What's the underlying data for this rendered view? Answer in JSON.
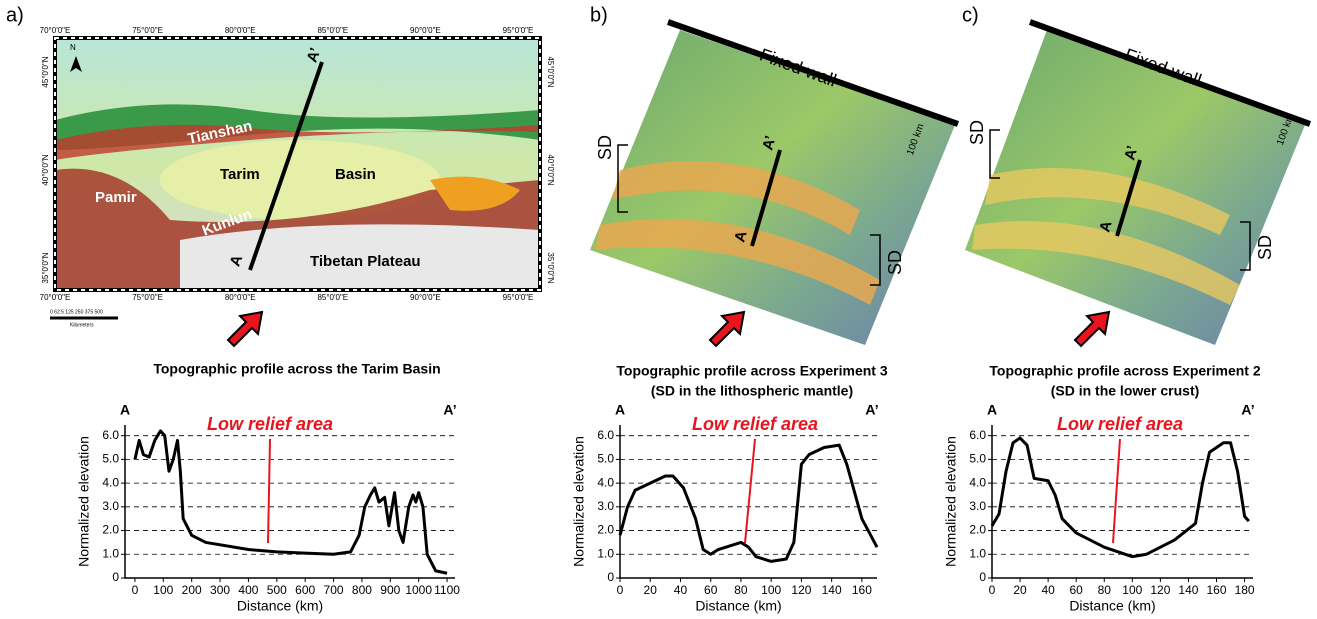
{
  "panels": [
    {
      "label": "a)",
      "lon_labels": [
        "70°0'0\"E",
        "75°0'0\"E",
        "80°0'0\"E",
        "85°0'0\"E",
        "90°0'0\"E",
        "95°0'0\"E"
      ],
      "lat_labels": [
        "45°0'0\"N",
        "40°0'0\"N",
        "35°0'0\"N"
      ],
      "north": "N",
      "scale_bar": {
        "ticks": "0 62.5 125    250    375    500",
        "unit": "Kilometers"
      },
      "places": [
        "Tianshan",
        "Tarim",
        "Basin",
        "Pamir",
        "Kunlun",
        "Tibetan Plateau"
      ],
      "profile_start": "A",
      "profile_end": "A’"
    },
    {
      "label": "b)",
      "wall": "Fixed wall",
      "sd_left": "SD",
      "sd_right": "SD",
      "scale": "100 km",
      "profile_start": "A",
      "profile_end": "A’"
    },
    {
      "label": "c)",
      "wall": "Fixed wall",
      "sd_left": "SD",
      "sd_right": "SD",
      "scale": "100 km",
      "profile_start": "A",
      "profile_end": "A’"
    }
  ],
  "chart_data": [
    {
      "type": "line",
      "title": "Topographic profile across the Tarim Basin",
      "x_label": "Distance (km)",
      "y_label": "Normalized elevation",
      "annotation": "Low relief area",
      "annotation_color": "#e8141e",
      "start_label": "A",
      "end_label": "A’",
      "x": [
        0,
        15,
        30,
        50,
        70,
        90,
        105,
        120,
        135,
        150,
        160,
        170,
        200,
        250,
        400,
        500,
        600,
        700,
        760,
        790,
        810,
        830,
        845,
        860,
        880,
        895,
        915,
        930,
        945,
        965,
        980,
        990,
        1000,
        1015,
        1030,
        1060,
        1100
      ],
      "series": [
        {
          "color": "#000000",
          "values": [
            5.0,
            5.8,
            5.2,
            5.1,
            5.8,
            6.2,
            6.0,
            4.5,
            5.0,
            5.8,
            4.5,
            2.5,
            1.8,
            1.5,
            1.2,
            1.1,
            1.05,
            1.0,
            1.1,
            1.8,
            3.0,
            3.5,
            3.8,
            3.2,
            3.4,
            2.2,
            3.6,
            2.0,
            1.5,
            3.0,
            3.5,
            3.2,
            3.6,
            3.0,
            1.0,
            0.3,
            0.2
          ]
        }
      ],
      "xlim": [
        -35,
        1128
      ],
      "xticks": [
        0,
        100,
        200,
        300,
        400,
        500,
        600,
        700,
        800,
        900,
        1000,
        1100
      ],
      "ylim": [
        0,
        6.45
      ],
      "yticks": [
        0,
        {
          "value": 1,
          "label": "1.0"
        },
        {
          "value": 2,
          "label": "2.0"
        },
        {
          "value": 3,
          "label": "3.0"
        },
        {
          "value": 4,
          "label": "4.0"
        },
        {
          "value": 5,
          "label": "5.0"
        },
        {
          "value": 6,
          "label": "6.0"
        }
      ],
      "grid": true
    },
    {
      "type": "line",
      "title": "Topographic profile across Experiment 3",
      "subtitle": "(SD in the lithospheric mantle)",
      "x_label": "Distance (km)",
      "y_label": "Normalized elevation",
      "annotation": "Low relief area",
      "annotation_color": "#e8141e",
      "start_label": "A",
      "end_label": "A’",
      "x": [
        0,
        5,
        10,
        20,
        30,
        35,
        42,
        50,
        55,
        60,
        65,
        70,
        80,
        85,
        90,
        100,
        110,
        115,
        120,
        125,
        135,
        145,
        150,
        160,
        170
      ],
      "series": [
        {
          "color": "#000000",
          "values": [
            1.8,
            3.0,
            3.7,
            4.0,
            4.3,
            4.3,
            3.8,
            2.5,
            1.2,
            1.0,
            1.2,
            1.3,
            1.5,
            1.3,
            0.9,
            0.7,
            0.8,
            1.5,
            4.8,
            5.2,
            5.5,
            5.6,
            4.8,
            2.5,
            1.3
          ]
        }
      ],
      "xlim": [
        0,
        170
      ],
      "xticks": [
        0,
        20,
        40,
        60,
        80,
        100,
        120,
        140,
        160
      ],
      "ylim": [
        0,
        6.45
      ],
      "yticks": [
        0,
        {
          "value": 1,
          "label": "1.0"
        },
        {
          "value": 2,
          "label": "2.0"
        },
        {
          "value": 3,
          "label": "3.0"
        },
        {
          "value": 4,
          "label": "4.0"
        },
        {
          "value": 5,
          "label": "5.0"
        },
        {
          "value": 6,
          "label": "6.0"
        }
      ],
      "grid": true
    },
    {
      "type": "line",
      "title": "Topographic profile across Experiment 2",
      "subtitle": "(SD in the lower crust)",
      "x_label": "Distance (km)",
      "y_label": "Normalized elevation",
      "annotation": "Low relief area",
      "annotation_color": "#e8141e",
      "start_label": "A",
      "end_label": "A’",
      "x": [
        0,
        5,
        10,
        15,
        20,
        25,
        30,
        40,
        45,
        50,
        60,
        80,
        100,
        110,
        130,
        145,
        150,
        155,
        165,
        170,
        175,
        180,
        183
      ],
      "series": [
        {
          "color": "#000000",
          "values": [
            2.2,
            2.7,
            4.5,
            5.7,
            5.9,
            5.6,
            4.2,
            4.1,
            3.5,
            2.5,
            1.9,
            1.3,
            0.9,
            1.0,
            1.6,
            2.3,
            4.0,
            5.3,
            5.7,
            5.7,
            4.5,
            2.6,
            2.4
          ]
        }
      ],
      "xlim": [
        0,
        186
      ],
      "xticks": [
        0,
        20,
        40,
        60,
        80,
        100,
        120,
        140,
        160,
        180
      ],
      "ylim": [
        0,
        6.45
      ],
      "yticks": [
        0,
        {
          "value": 1,
          "label": "1.0"
        },
        {
          "value": 2,
          "label": "2.0"
        },
        {
          "value": 3,
          "label": "3.0"
        },
        {
          "value": 4,
          "label": "4.0"
        },
        {
          "value": 5,
          "label": "5.0"
        },
        {
          "value": 6,
          "label": "6.0"
        }
      ],
      "grid": true
    }
  ]
}
